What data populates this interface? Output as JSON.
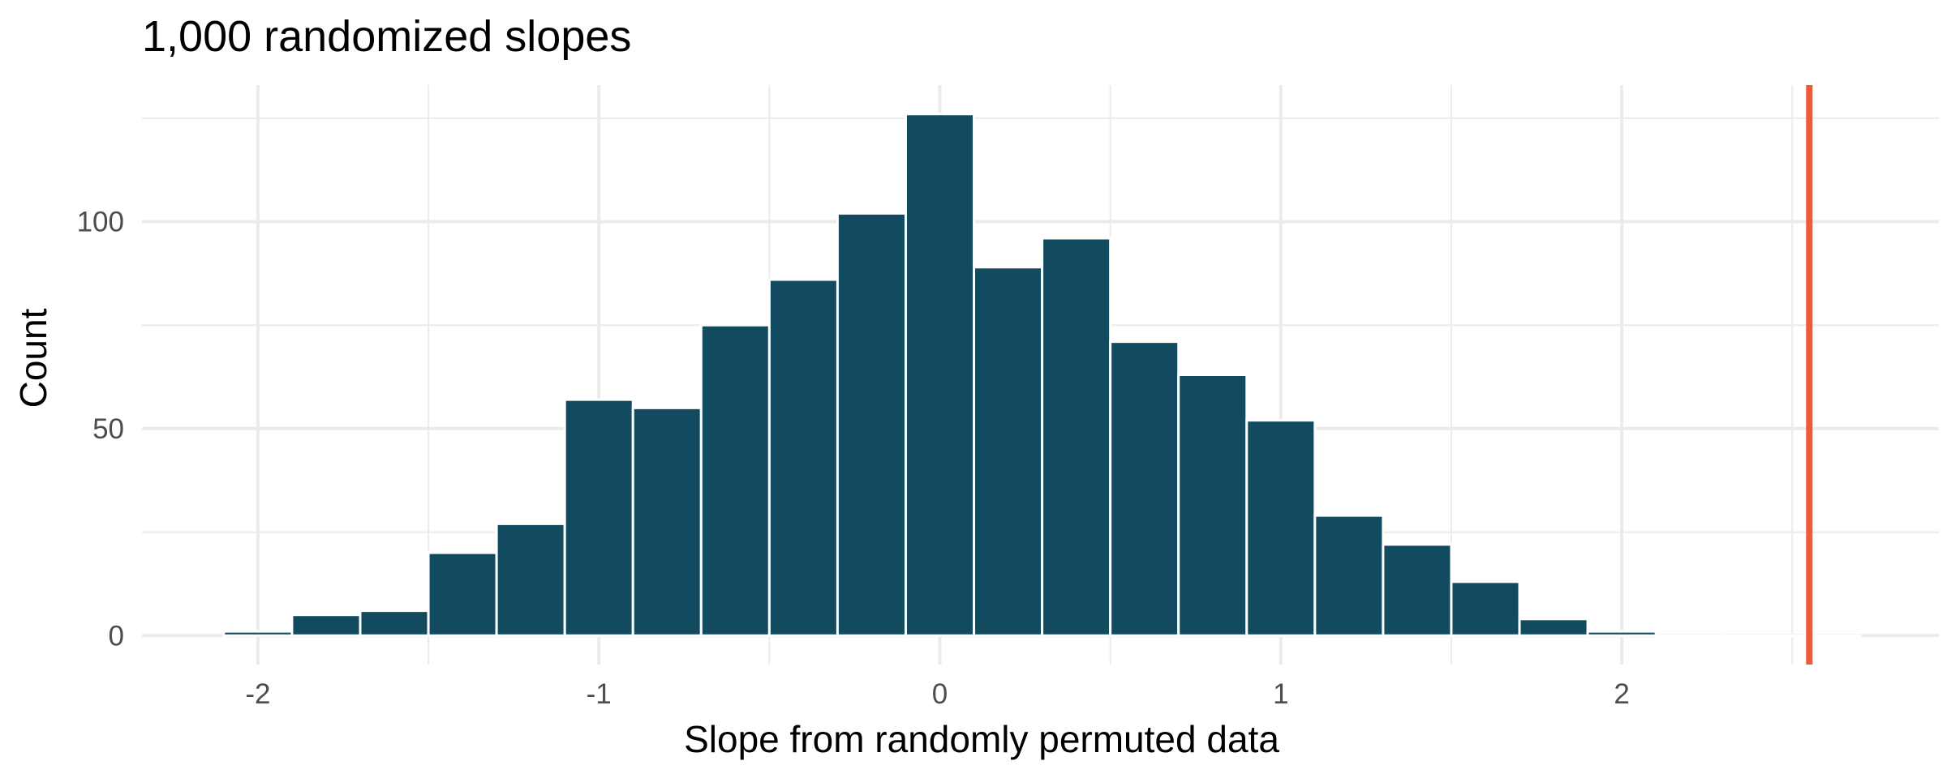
{
  "chart_data": {
    "type": "bar",
    "title": "1,000 randomized slopes",
    "xlabel": "Slope from randomly permuted data",
    "ylabel": "Count",
    "bin_width": 0.2,
    "bins": [
      {
        "x": -2.0,
        "count": 1
      },
      {
        "x": -1.8,
        "count": 5
      },
      {
        "x": -1.6,
        "count": 6
      },
      {
        "x": -1.4,
        "count": 20
      },
      {
        "x": -1.2,
        "count": 27
      },
      {
        "x": -1.0,
        "count": 57
      },
      {
        "x": -0.8,
        "count": 55
      },
      {
        "x": -0.6,
        "count": 75
      },
      {
        "x": -0.4,
        "count": 86
      },
      {
        "x": -0.2,
        "count": 102
      },
      {
        "x": 0.0,
        "count": 126
      },
      {
        "x": 0.2,
        "count": 89
      },
      {
        "x": 0.4,
        "count": 96
      },
      {
        "x": 0.6,
        "count": 71
      },
      {
        "x": 0.8,
        "count": 63
      },
      {
        "x": 1.0,
        "count": 52
      },
      {
        "x": 1.2,
        "count": 29
      },
      {
        "x": 1.4,
        "count": 22
      },
      {
        "x": 1.6,
        "count": 13
      },
      {
        "x": 1.8,
        "count": 4
      },
      {
        "x": 2.0,
        "count": 1
      },
      {
        "x": 2.2,
        "count": 0
      },
      {
        "x": 2.4,
        "count": 0
      },
      {
        "x": 2.6,
        "count": 0
      }
    ],
    "observed_slope": 2.55,
    "xlim": [
      -2.34,
      2.93
    ],
    "ylim": [
      -7,
      133
    ],
    "x_ticks": [
      -2,
      -1,
      0,
      1,
      2
    ],
    "x_tick_labels": [
      "-2",
      "-1",
      "0",
      "1",
      "2"
    ],
    "y_ticks": [
      0,
      50,
      100
    ],
    "y_tick_labels": [
      "0",
      "50",
      "100"
    ],
    "bar_color": "#124b5f",
    "line_color": "#f05a38",
    "grid": true
  }
}
